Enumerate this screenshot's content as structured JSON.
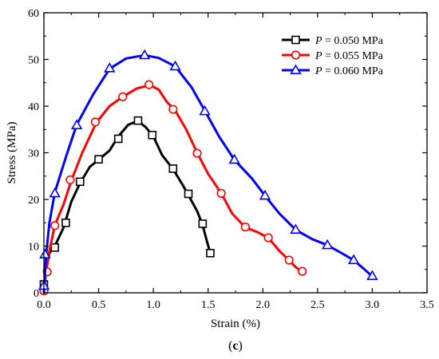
{
  "chart_data": {
    "type": "line",
    "xlabel": "Strain (%)",
    "ylabel": "Stress (MPa)",
    "panel_label": {
      "open": "(",
      "letter": "c",
      "close": ")"
    },
    "xlim": [
      0,
      3.5
    ],
    "ylim": [
      0,
      60
    ],
    "x_ticks": [
      "0.0",
      "0.5",
      "1.0",
      "1.5",
      "2.0",
      "2.5",
      "3.0",
      "3.5"
    ],
    "y_ticks": [
      "0",
      "10",
      "20",
      "30",
      "40",
      "50",
      "60"
    ],
    "legend_position": "top-right",
    "grid": false,
    "series": [
      {
        "name": "P = 0.050 MPa",
        "legend": {
          "var": "P",
          "rest": " = 0.050 MPa"
        },
        "color": "#000000",
        "marker": "square",
        "curve": [
          [
            0,
            0
          ],
          [
            0.02,
            5
          ],
          [
            0.05,
            8.5
          ],
          [
            0.1,
            10
          ],
          [
            0.18,
            14
          ],
          [
            0.25,
            19.5
          ],
          [
            0.33,
            23.5
          ],
          [
            0.42,
            27
          ],
          [
            0.5,
            28.5
          ],
          [
            0.6,
            30.5
          ],
          [
            0.68,
            33.5
          ],
          [
            0.77,
            36
          ],
          [
            0.86,
            36.8
          ],
          [
            0.93,
            35.5
          ],
          [
            1.0,
            33.5
          ],
          [
            1.08,
            29.5
          ],
          [
            1.18,
            26.5
          ],
          [
            1.27,
            23
          ],
          [
            1.33,
            20.5
          ],
          [
            1.4,
            17.5
          ],
          [
            1.45,
            14.5
          ],
          [
            1.49,
            11
          ],
          [
            1.52,
            8.5
          ]
        ],
        "markers": [
          [
            0.0,
            1.8
          ],
          [
            0.1,
            9.7
          ],
          [
            0.2,
            15
          ],
          [
            0.33,
            23.8
          ],
          [
            0.5,
            28.6
          ],
          [
            0.68,
            33
          ],
          [
            0.86,
            36.9
          ],
          [
            0.99,
            33.8
          ],
          [
            1.18,
            26.6
          ],
          [
            1.32,
            21.2
          ],
          [
            1.45,
            14.8
          ],
          [
            1.52,
            8.5
          ]
        ]
      },
      {
        "name": "P = 0.055 MPa",
        "legend": {
          "var": "P",
          "rest": " = 0.055 MPa"
        },
        "color": "#ff0000",
        "marker": "circle",
        "curve": [
          [
            0,
            0
          ],
          [
            0.02,
            4.5
          ],
          [
            0.05,
            9
          ],
          [
            0.1,
            14.5
          ],
          [
            0.18,
            19
          ],
          [
            0.25,
            24
          ],
          [
            0.35,
            30
          ],
          [
            0.48,
            36.5
          ],
          [
            0.6,
            40
          ],
          [
            0.72,
            42
          ],
          [
            0.85,
            43.8
          ],
          [
            0.97,
            44.5
          ],
          [
            1.05,
            43.5
          ],
          [
            1.12,
            41
          ],
          [
            1.2,
            39
          ],
          [
            1.3,
            35
          ],
          [
            1.4,
            30
          ],
          [
            1.5,
            25.5
          ],
          [
            1.62,
            21.3
          ],
          [
            1.72,
            17
          ],
          [
            1.84,
            14
          ],
          [
            1.95,
            13
          ],
          [
            2.05,
            11.8
          ],
          [
            2.15,
            9
          ],
          [
            2.24,
            7
          ],
          [
            2.3,
            5.5
          ],
          [
            2.36,
            4.5
          ]
        ],
        "markers": [
          [
            0.0,
            0.4
          ],
          [
            0.03,
            4.5
          ],
          [
            0.1,
            14.4
          ],
          [
            0.24,
            24.2
          ],
          [
            0.47,
            36.6
          ],
          [
            0.72,
            42
          ],
          [
            0.96,
            44.6
          ],
          [
            1.18,
            39.3
          ],
          [
            1.4,
            29.9
          ],
          [
            1.62,
            21.3
          ],
          [
            1.84,
            14.1
          ],
          [
            2.05,
            11.8
          ],
          [
            2.24,
            7
          ],
          [
            2.36,
            4.6
          ]
        ]
      },
      {
        "name": "P = 0.060 MPa",
        "legend": {
          "var": "P",
          "rest": " = 0.060 MPa"
        },
        "color": "#0000ff",
        "marker": "triangle",
        "curve": [
          [
            0,
            0
          ],
          [
            0.02,
            8
          ],
          [
            0.05,
            15
          ],
          [
            0.1,
            21.5
          ],
          [
            0.2,
            29
          ],
          [
            0.3,
            36
          ],
          [
            0.45,
            42.5
          ],
          [
            0.6,
            48
          ],
          [
            0.75,
            50.2
          ],
          [
            0.92,
            50.9
          ],
          [
            1.05,
            50.3
          ],
          [
            1.2,
            48.5
          ],
          [
            1.35,
            44
          ],
          [
            1.47,
            39
          ],
          [
            1.6,
            33.5
          ],
          [
            1.74,
            28.5
          ],
          [
            1.9,
            24.5
          ],
          [
            2.02,
            20.8
          ],
          [
            2.15,
            17
          ],
          [
            2.3,
            13.5
          ],
          [
            2.45,
            11.5
          ],
          [
            2.59,
            10.2
          ],
          [
            2.72,
            8.5
          ],
          [
            2.83,
            7
          ],
          [
            2.93,
            5
          ],
          [
            3.0,
            3.5
          ]
        ],
        "markers": [
          [
            0.0,
            1.5
          ],
          [
            0.01,
            8.2
          ],
          [
            0.1,
            21.3
          ],
          [
            0.3,
            35.9
          ],
          [
            0.6,
            48.1
          ],
          [
            0.92,
            50.9
          ],
          [
            1.2,
            48.5
          ],
          [
            1.47,
            38.9
          ],
          [
            1.74,
            28.5
          ],
          [
            2.02,
            20.8
          ],
          [
            2.3,
            13.5
          ],
          [
            2.59,
            10.2
          ],
          [
            2.83,
            7
          ],
          [
            3.0,
            3.6
          ]
        ]
      }
    ]
  }
}
